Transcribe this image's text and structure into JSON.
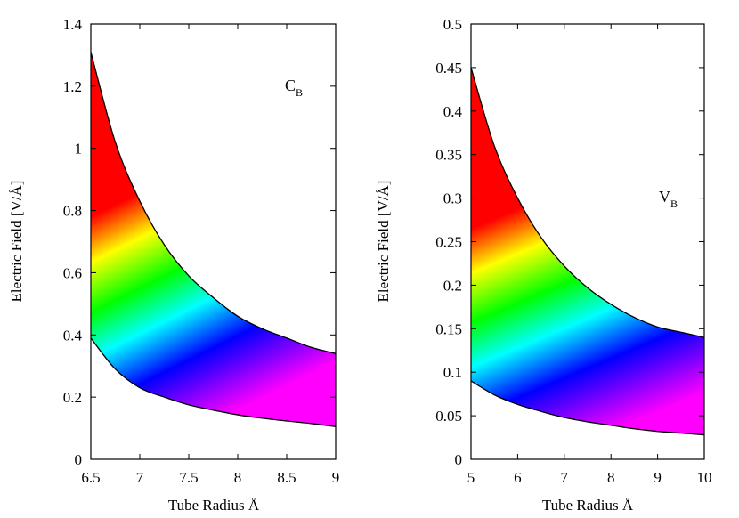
{
  "chart_data": [
    {
      "type": "area",
      "title": "",
      "annotation": {
        "main": "C",
        "sub": "B"
      },
      "xlabel": "Tube Radius   Å",
      "ylabel": "Electric Field [V/Å]",
      "xlim": [
        6.5,
        9
      ],
      "ylim": [
        0,
        1.4
      ],
      "xticks": [
        "6.5",
        "7",
        "7.5",
        "8",
        "8.5",
        "9"
      ],
      "yticks": [
        "0",
        "0.2",
        "0.4",
        "0.6",
        "0.8",
        "1",
        "1.2",
        "1.4"
      ],
      "series": [
        {
          "name": "upper",
          "x": [
            6.5,
            6.75,
            7.0,
            7.25,
            7.5,
            7.75,
            8.0,
            8.25,
            8.5,
            8.75,
            9.0
          ],
          "values": [
            1.31,
            1.02,
            0.83,
            0.69,
            0.59,
            0.52,
            0.46,
            0.42,
            0.39,
            0.36,
            0.34
          ]
        },
        {
          "name": "lower",
          "x": [
            6.5,
            6.75,
            7.0,
            7.25,
            7.5,
            7.75,
            8.0,
            8.25,
            8.5,
            8.75,
            9.0
          ],
          "values": [
            0.39,
            0.29,
            0.23,
            0.2,
            0.175,
            0.158,
            0.143,
            0.132,
            0.123,
            0.115,
            0.105
          ]
        }
      ]
    },
    {
      "type": "area",
      "title": "",
      "annotation": {
        "main": "V",
        "sub": "B"
      },
      "xlabel": "Tube Radius   Å",
      "ylabel": "Electric Field [V/Å]",
      "xlim": [
        5,
        10
      ],
      "ylim": [
        0,
        0.5
      ],
      "xticks": [
        "5",
        "6",
        "7",
        "8",
        "9",
        "10"
      ],
      "yticks": [
        "0",
        "0.05",
        "0.1",
        "0.15",
        "0.2",
        "0.25",
        "0.3",
        "0.35",
        "0.4",
        "0.45",
        "0.5"
      ],
      "series": [
        {
          "name": "upper",
          "x": [
            5.0,
            5.5,
            6.0,
            6.5,
            7.0,
            7.5,
            8.0,
            8.5,
            9.0,
            9.5,
            10.0
          ],
          "values": [
            0.45,
            0.36,
            0.3,
            0.255,
            0.222,
            0.197,
            0.178,
            0.163,
            0.152,
            0.146,
            0.14
          ]
        },
        {
          "name": "lower",
          "x": [
            5.0,
            5.5,
            6.0,
            6.5,
            7.0,
            7.5,
            8.0,
            8.5,
            9.0,
            9.5,
            10.0
          ],
          "values": [
            0.09,
            0.074,
            0.063,
            0.055,
            0.048,
            0.043,
            0.039,
            0.035,
            0.032,
            0.03,
            0.028
          ]
        }
      ]
    }
  ]
}
